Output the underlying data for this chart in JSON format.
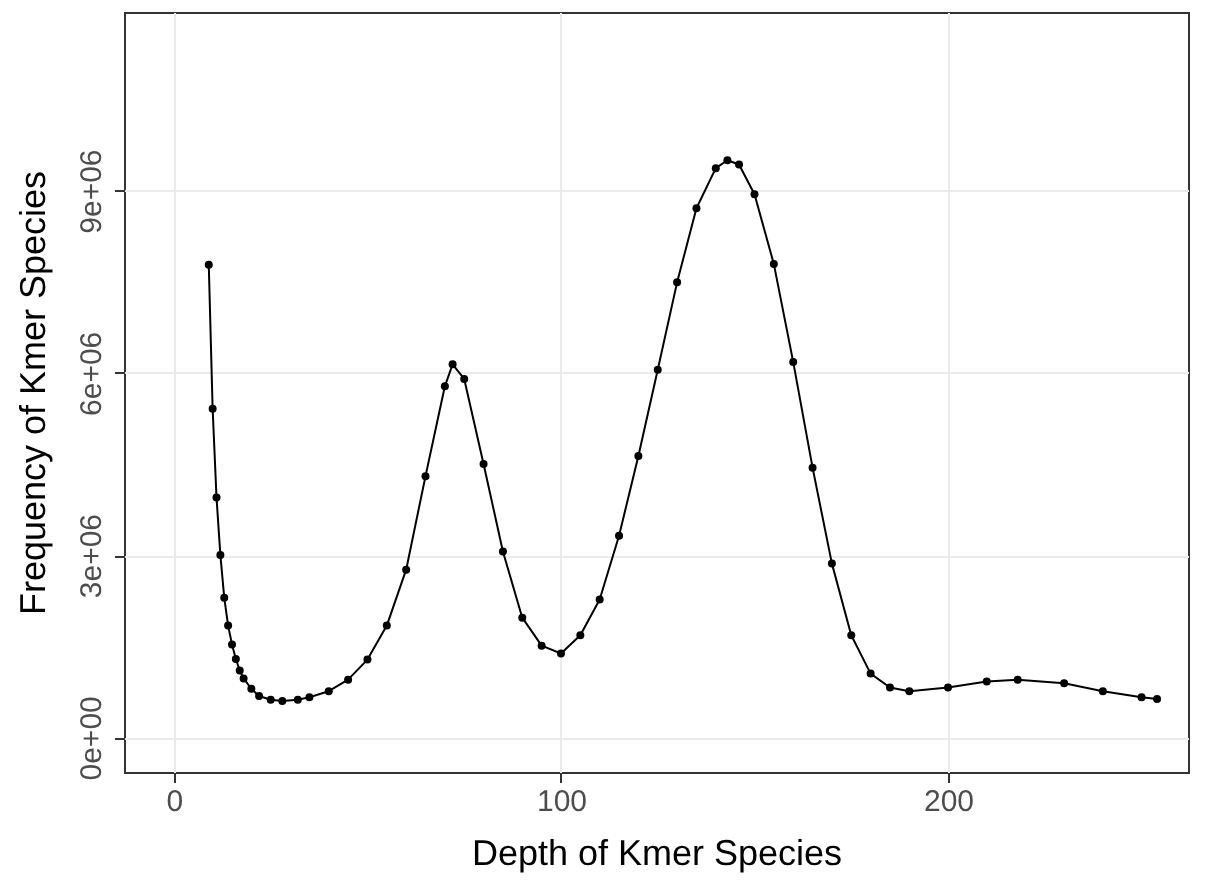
{
  "chart_data": {
    "type": "line",
    "xlabel": "Depth of Kmer Species",
    "ylabel": "Frequency of Kmer Species",
    "xlim": [
      -12.9,
      262
    ],
    "xticks": [
      0,
      100,
      200
    ],
    "ylim": [
      -570000,
      11940000
    ],
    "yticks": [
      {
        "value": 0,
        "label": "0e+00"
      },
      {
        "value": 3000000,
        "label": "3e+06"
      },
      {
        "value": 6000000,
        "label": "6e+06"
      },
      {
        "value": 9000000,
        "label": "9e+06"
      }
    ],
    "grid": true,
    "marker": "circle",
    "line_style": "solid",
    "series": [
      {
        "color": "#000000",
        "x": [
          9,
          10,
          11,
          12,
          13,
          14,
          15,
          16,
          17,
          18,
          20,
          22,
          25,
          28,
          32,
          35,
          40,
          45,
          50,
          55,
          60,
          65,
          70,
          72,
          75,
          80,
          85,
          90,
          95,
          100,
          105,
          110,
          115,
          120,
          125,
          130,
          135,
          140,
          143,
          146,
          150,
          155,
          160,
          165,
          170,
          175,
          180,
          185,
          190,
          200,
          210,
          218,
          230,
          240,
          250,
          254
        ],
        "values": [
          7780000,
          5410000,
          3950000,
          3000000,
          2300000,
          1840000,
          1530000,
          1290000,
          1100000,
          970000,
          800000,
          680000,
          620000,
          600000,
          620000,
          660000,
          760000,
          950000,
          1280000,
          1840000,
          2760000,
          4300000,
          5780000,
          6140000,
          5900000,
          4500000,
          3060000,
          1970000,
          1510000,
          1380000,
          1680000,
          2270000,
          3320000,
          4630000,
          6050000,
          7490000,
          8710000,
          9370000,
          9500000,
          9430000,
          8940000,
          7790000,
          6180000,
          4440000,
          2860000,
          1680000,
          1050000,
          820000,
          760000,
          820000,
          920000,
          950000,
          890000,
          760000,
          660000,
          630000
        ]
      }
    ]
  }
}
